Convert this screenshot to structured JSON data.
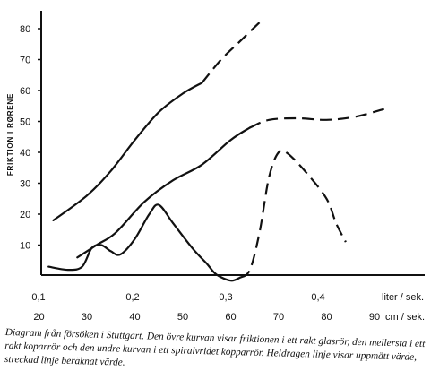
{
  "chart_data": {
    "type": "line",
    "title": "",
    "ylabel": "FRIKTION I RØRENE",
    "ylim": [
      0,
      85
    ],
    "y_ticks": [
      "10",
      "20",
      "30",
      "40",
      "50",
      "60",
      "70",
      "80"
    ],
    "x_axis_top": {
      "unit_label": "liter / sek.",
      "ticks": [
        "0,1",
        "0,2",
        "0,3",
        "0,4"
      ]
    },
    "x_axis_bottom": {
      "unit_label": "cm / sek.",
      "ticks": [
        "20",
        "30",
        "40",
        "50",
        "60",
        "70",
        "80",
        "90"
      ],
      "range": [
        19,
        93
      ]
    },
    "grid": false,
    "legend": "none",
    "series": [
      {
        "solid": [
          [
            23,
            18
          ],
          [
            30,
            26
          ],
          [
            35,
            34
          ],
          [
            40,
            44
          ],
          [
            45,
            53
          ],
          [
            50,
            59
          ],
          [
            54,
            62.5
          ]
        ],
        "dashed": [
          [
            54,
            62.5
          ],
          [
            58,
            70
          ],
          [
            62,
            76
          ],
          [
            66,
            82
          ]
        ],
        "color": "#111111"
      },
      {
        "solid": [
          [
            28,
            6
          ],
          [
            32,
            10
          ],
          [
            36,
            14
          ],
          [
            42,
            24
          ],
          [
            48,
            31
          ],
          [
            54,
            36
          ],
          [
            60,
            44
          ],
          [
            64,
            48
          ]
        ],
        "dashed": [
          [
            64,
            48
          ],
          [
            68,
            50.5
          ],
          [
            74,
            51
          ],
          [
            80,
            50.5
          ],
          [
            86,
            51.5
          ],
          [
            92,
            54
          ]
        ],
        "color": "#111111"
      },
      {
        "solid": [
          [
            22,
            3
          ],
          [
            26,
            2
          ],
          [
            29,
            3
          ],
          [
            31,
            9
          ],
          [
            33,
            10
          ],
          [
            35,
            8
          ],
          [
            37,
            7
          ],
          [
            40,
            12
          ],
          [
            43,
            20
          ],
          [
            45,
            23
          ],
          [
            48,
            17
          ],
          [
            52,
            9
          ],
          [
            55,
            4
          ],
          [
            57,
            0.5
          ],
          [
            60,
            -1.5
          ],
          [
            62,
            -0.5
          ]
        ],
        "dashed": [
          [
            62,
            -0.5
          ],
          [
            64,
            2
          ],
          [
            66,
            14
          ],
          [
            68,
            32
          ],
          [
            70,
            40
          ],
          [
            72,
            39.5
          ],
          [
            76,
            33
          ],
          [
            80,
            25
          ],
          [
            82,
            17
          ],
          [
            84,
            11
          ]
        ],
        "color": "#111111"
      }
    ]
  },
  "caption": "Diagram från försöken i Stuttgart. Den övre kurvan visar friktionen i ett rakt glasrör, den mellersta i ett rakt koparrör och den undre kurvan i ett spiralvridet kopparrör. Heldragen linje visar uppmätt värde, streckad linje beräknat värde."
}
